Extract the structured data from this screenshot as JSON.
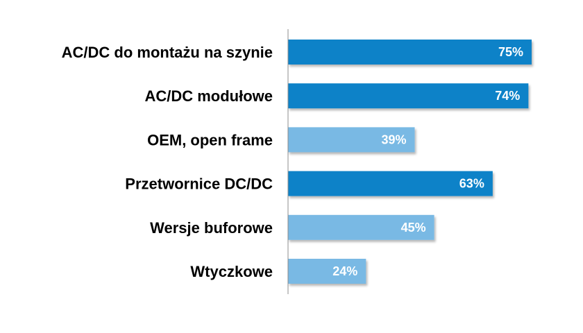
{
  "chart_data": {
    "type": "bar",
    "orientation": "horizontal",
    "title": "",
    "xlabel": "",
    "ylabel": "",
    "categories": [
      "AC/DC do montażu na szynie",
      "AC/DC modułowe",
      "OEM, open frame",
      "Przetwornice DC/DC",
      "Wersje buforowe",
      "Wtyczkowe"
    ],
    "values": [
      75,
      74,
      39,
      63,
      45,
      24
    ],
    "value_labels": [
      "75%",
      "74%",
      "39%",
      "63%",
      "45%",
      "24%"
    ],
    "xlim": [
      0,
      75
    ],
    "grid": false,
    "legend": "none",
    "bar_colors": [
      "#0a82c8",
      "#0a82c8",
      "#79b9e4",
      "#0a82c8",
      "#79b9e4",
      "#79b9e4"
    ]
  }
}
